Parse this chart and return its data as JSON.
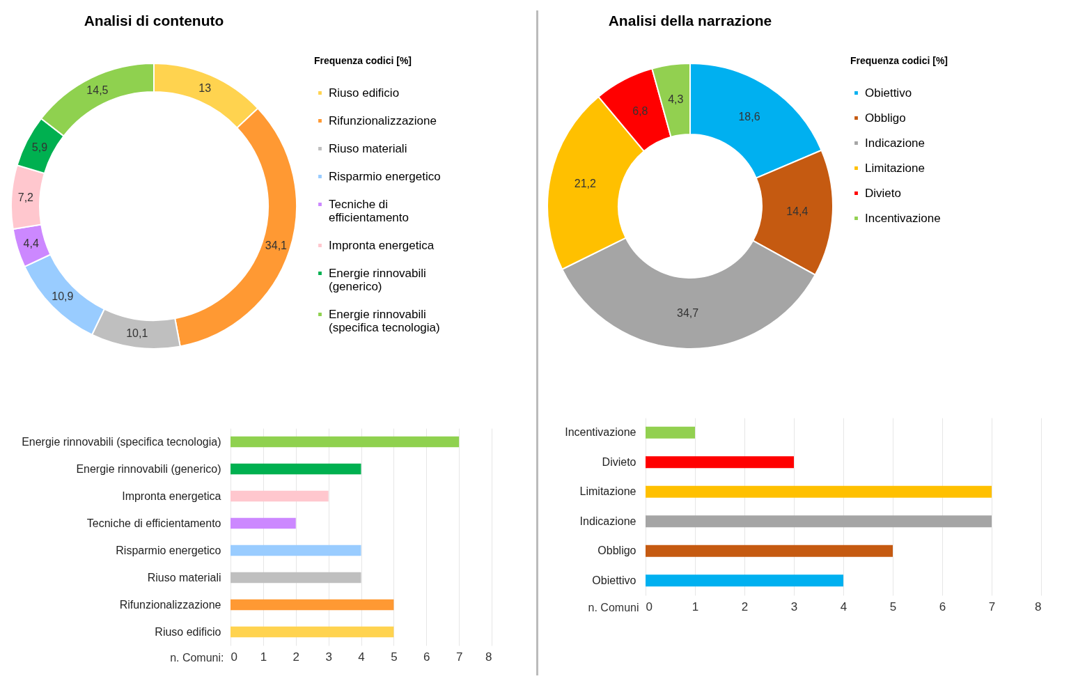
{
  "chart_data": [
    {
      "type": "donut",
      "title": "Analisi di contenuto",
      "legend_title": "Frequenza codici [%]",
      "legend": "right",
      "categories": [
        "Riuso edificio",
        "Rifunzionalizzazione",
        "Riuso materiali",
        "Risparmio energetico",
        "Tecniche di efficientamento",
        "Impronta energetica",
        "Energie rinnovabili (generico)",
        "Energie rinnovabili (specifica tecnologia)"
      ],
      "values": [
        13,
        34.1,
        10.1,
        10.9,
        4.4,
        7.2,
        5.9,
        14.5
      ],
      "value_labels": [
        "13",
        "34,1",
        "10,1",
        "10,9",
        "4,4",
        "7,2",
        "5,9",
        "14,5"
      ],
      "colors": [
        "#ffd34f",
        "#ff9933",
        "#bfbfbf",
        "#99ccff",
        "#cc88ff",
        "#ffc7ce",
        "#00b050",
        "#8fd14f"
      ]
    },
    {
      "type": "donut",
      "title": "Analisi della narrazione",
      "legend_title": "Frequenza codici [%]",
      "legend": "right",
      "categories": [
        "Obiettivo",
        "Obbligo",
        "Indicazione",
        "Limitazione",
        "Divieto",
        "Incentivazione"
      ],
      "values": [
        18.6,
        14.4,
        34.7,
        21.2,
        6.8,
        4.3
      ],
      "value_labels": [
        "18,6",
        "14,4",
        "34,7",
        "21,2",
        "6,8",
        "4,3"
      ],
      "colors": [
        "#00b0f0",
        "#c55a11",
        "#a5a5a5",
        "#ffc000",
        "#ff0000",
        "#92d050"
      ]
    },
    {
      "type": "bar",
      "orientation": "horizontal",
      "xlabel": "n. Comuni:",
      "grid": "x",
      "categories": [
        "Energie rinnovabili (specifica tecnologia)",
        "Energie rinnovabili (generico)",
        "Impronta energetica",
        "Tecniche di efficientamento",
        "Risparmio energetico",
        "Riuso materiali",
        "Rifunzionalizzazione",
        "Riuso edificio"
      ],
      "values": [
        7,
        4,
        3,
        2,
        4,
        4,
        5,
        5
      ],
      "colors": [
        "#8fd14f",
        "#00b050",
        "#ffc7ce",
        "#cc88ff",
        "#99ccff",
        "#bfbfbf",
        "#ff9933",
        "#ffd34f"
      ],
      "xlim": [
        0,
        8
      ],
      "xticks": [
        0,
        1,
        2,
        3,
        4,
        5,
        6,
        7,
        8
      ]
    },
    {
      "type": "bar",
      "orientation": "horizontal",
      "xlabel": "n. Comuni",
      "grid": "x",
      "categories": [
        "Incentivazione",
        "Divieto",
        "Limitazione",
        "Indicazione",
        "Obbligo",
        "Obiettivo"
      ],
      "values": [
        1,
        3,
        7,
        7,
        5,
        4
      ],
      "colors": [
        "#92d050",
        "#ff0000",
        "#ffc000",
        "#a5a5a5",
        "#c55a11",
        "#00b0f0"
      ],
      "xlim": [
        0,
        8
      ],
      "xticks": [
        0,
        1,
        2,
        3,
        4,
        5,
        6,
        7,
        8
      ]
    }
  ]
}
